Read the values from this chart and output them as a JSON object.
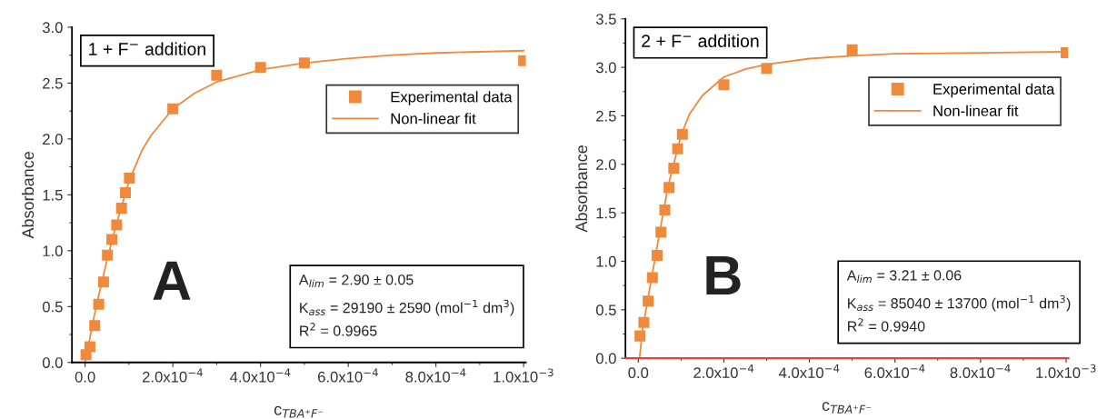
{
  "chart_data": [
    {
      "type": "scatter",
      "title": "1 + F$^{−}$ addition",
      "xlabel": "c$_{TBA⁺F⁻}$",
      "ylabel": "Absorbance",
      "xlim": [
        -3e-05,
        0.001005
      ],
      "ylim": [
        0,
        3.0
      ],
      "xticks": [
        {
          "value": 0,
          "label": "0.0"
        },
        {
          "value": 0.0002,
          "label": "2.0x10$^{−4}$"
        },
        {
          "value": 0.0004,
          "label": "4.0x10$^{−4}$"
        },
        {
          "value": 0.0006,
          "label": "6.0x10$^{−4}$"
        },
        {
          "value": 0.0008,
          "label": "8.0x10$^{−4}$"
        },
        {
          "value": 0.001,
          "label": "1.0x10$^{−3}$"
        }
      ],
      "yticks": [
        {
          "value": 0,
          "label": "0.0"
        },
        {
          "value": 0.5,
          "label": "0.5"
        },
        {
          "value": 1.0,
          "label": "1.0"
        },
        {
          "value": 1.5,
          "label": "1.5"
        },
        {
          "value": 2.0,
          "label": "2.0"
        },
        {
          "value": 2.5,
          "label": "2.5"
        },
        {
          "value": 3.0,
          "label": "3.0"
        }
      ],
      "grid": false,
      "legend": "top right",
      "annotations": [
        "A",
        "A$_{lim}$ = 2.90 ± 0.05",
        "K$_{ass}$ = 29190 ± 2590 (mol$^{−1}$ dm$^{3}$)",
        "R$^{2}$ = 0.9965"
      ],
      "series": [
        {
          "name": "Experimental data",
          "marker": "square",
          "color": "#ef8a3c",
          "x": [
            2e-06,
            1.1e-05,
            2.2e-05,
            3.1e-05,
            4.2e-05,
            5.1e-05,
            6.1e-05,
            7.2e-05,
            8.3e-05,
            9.2e-05,
            0.000101,
            0.0002,
            0.0003,
            0.0004,
            0.0005,
            0.001
          ],
          "values": [
            0.07,
            0.14,
            0.33,
            0.52,
            0.72,
            0.96,
            1.1,
            1.23,
            1.38,
            1.52,
            1.65,
            2.27,
            2.57,
            2.64,
            2.68,
            2.7
          ]
        },
        {
          "name": "Non-linear fit",
          "type": "line",
          "color": "#ef8a3c",
          "x": [
            0,
            1e-05,
            2e-05,
            3e-05,
            5e-05,
            7e-05,
            0.0001,
            0.00013,
            0.00015,
            0.0002,
            0.00025,
            0.0003,
            0.0004,
            0.0005,
            0.0006,
            0.0007,
            0.0008,
            0.0009,
            0.001
          ],
          "values": [
            0,
            0.2,
            0.4,
            0.58,
            0.92,
            1.22,
            1.62,
            1.9,
            2.03,
            2.27,
            2.41,
            2.51,
            2.62,
            2.68,
            2.72,
            2.75,
            2.77,
            2.78,
            2.79
          ]
        }
      ]
    },
    {
      "type": "scatter",
      "title": "2 + F$^{−}$ addition",
      "xlabel": "c$_{TBA⁺F⁻}$",
      "ylabel": "Absorbance",
      "xlim": [
        -3e-05,
        0.001005
      ],
      "ylim": [
        0,
        3.5
      ],
      "xticks": [
        {
          "value": 0,
          "label": "0.0"
        },
        {
          "value": 0.0002,
          "label": "2.0x10$^{−4}$"
        },
        {
          "value": 0.0004,
          "label": "4.0x10$^{−4}$"
        },
        {
          "value": 0.0006,
          "label": "6.0x10$^{−4}$"
        },
        {
          "value": 0.0008,
          "label": "8.0x10$^{−4}$"
        },
        {
          "value": 0.001,
          "label": "1.0x10$^{−3}$"
        }
      ],
      "yticks": [
        {
          "value": 0,
          "label": "0.0"
        },
        {
          "value": 0.5,
          "label": "0.5"
        },
        {
          "value": 1.0,
          "label": "1.0"
        },
        {
          "value": 1.5,
          "label": "1.5"
        },
        {
          "value": 2.0,
          "label": "2.0"
        },
        {
          "value": 2.5,
          "label": "2.5"
        },
        {
          "value": 3.0,
          "label": "3.0"
        },
        {
          "value": 3.5,
          "label": "3.5"
        }
      ],
      "grid": false,
      "legend": "top right",
      "ref_lines": [
        {
          "axis": "y",
          "value": 0,
          "color": "#e8403a"
        }
      ],
      "annotations": [
        "B",
        "A$_{lim}$ = 3.21 ± 0.06",
        "K$_{ass}$ = 85040 ± 13700 (mol$^{−1}$ dm$^{3}$)",
        "R$^{2}$ = 0.9940"
      ],
      "series": [
        {
          "name": "Experimental data",
          "marker": "square",
          "color": "#ef8a3c",
          "x": [
            4e-06,
            1.3e-05,
            2.3e-05,
            3.3e-05,
            4.4e-05,
            5.3e-05,
            6.2e-05,
            7.2e-05,
            8.3e-05,
            9.2e-05,
            0.000103,
            0.0002,
            0.0003,
            0.0005,
            0.001
          ],
          "values": [
            0.23,
            0.37,
            0.59,
            0.83,
            1.06,
            1.3,
            1.53,
            1.76,
            1.96,
            2.16,
            2.31,
            2.82,
            2.99,
            3.18,
            3.15
          ]
        },
        {
          "name": "Non-linear fit",
          "type": "line",
          "color": "#ef8a3c",
          "x": [
            3e-06,
            1e-05,
            2e-05,
            3e-05,
            5e-05,
            7e-05,
            0.0001,
            0.00012,
            0.00015,
            0.0002,
            0.00025,
            0.0003,
            0.0004,
            0.0005,
            0.0006,
            0.0008,
            0.001
          ],
          "values": [
            0,
            0.3,
            0.55,
            0.8,
            1.3,
            1.78,
            2.3,
            2.52,
            2.71,
            2.9,
            2.98,
            3.03,
            3.09,
            3.12,
            3.14,
            3.15,
            3.16
          ]
        }
      ]
    }
  ]
}
